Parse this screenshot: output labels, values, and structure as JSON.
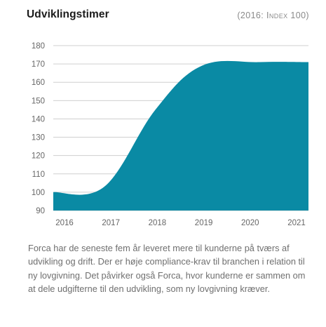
{
  "header": {
    "title": "Udviklingstimer",
    "subtitle": "(2016: Index 100)"
  },
  "caption": "Forca har de seneste fem år leveret mere til kunderne på tværs af udvikling og drift. Der er høje compliance-krav til branchen i relation til ny lovgivning. Det påvirker også Forca, hvor kunderne er sammen om at dele udgifterne til den udvikling, som ny lovgivning kræver.",
  "colors": {
    "area": "#0a8aa4",
    "grid": "#cfcfcf",
    "text": "#666666"
  },
  "chart_data": {
    "type": "area",
    "title": "Udviklingstimer",
    "subtitle": "(2016: Index 100)",
    "categories": [
      "2016",
      "2017",
      "2018",
      "2019",
      "2020",
      "2021"
    ],
    "x": [
      2015.75,
      2016.85,
      2017.95,
      2018.95,
      2020.2,
      2021.25
    ],
    "values": [
      100,
      103,
      145,
      169,
      171,
      171
    ],
    "yticks": [
      90,
      100,
      110,
      120,
      130,
      140,
      150,
      160,
      170,
      180
    ],
    "ylim": [
      90,
      180
    ],
    "xlim": [
      2015.75,
      2021.25
    ],
    "grid": true,
    "legend": "none"
  }
}
